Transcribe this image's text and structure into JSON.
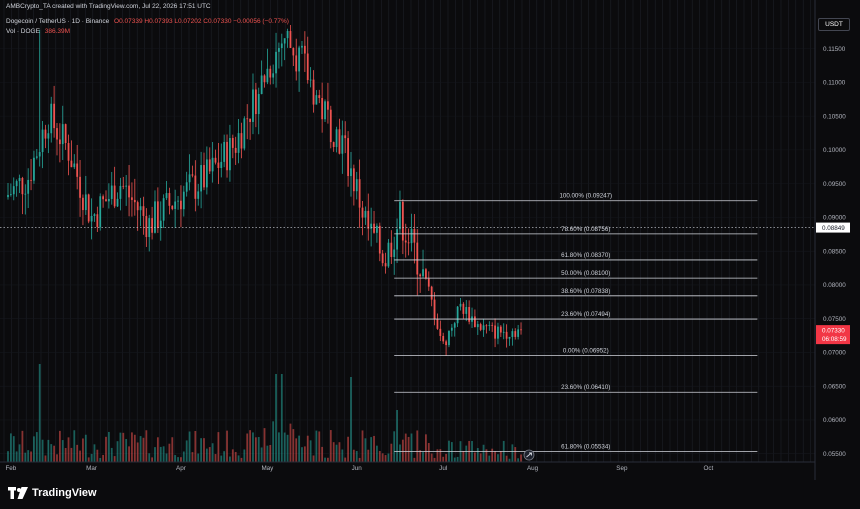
{
  "header": {
    "credit": "AMBCrypto_TA created with TradingView.com, Jul 22, 2026 17:51 UTC",
    "symbol": "Dogecoin / TetherUS · 1D · Binance",
    "ohlc": "O0.07339 H0.07393 L0.07202 C0.07330 −0.00056 (−0.77%)",
    "vol_label": "Vol · DOGE",
    "vol_value": "386.39M"
  },
  "branding": {
    "logo_text": "TradingView",
    "unit_label": "USDT"
  },
  "colors": {
    "bull": "#26a69a",
    "bear": "#ef5350",
    "line": "#d1d4dc",
    "price_badge": "#f23645",
    "bg": "#0b0b0d",
    "grid": "#1d2028"
  },
  "chart_data": {
    "type": "candlestick",
    "xlabel": "",
    "ylabel": "",
    "ylim": [
      0.0548,
      0.1185
    ],
    "y_ticks": [
      "0.11500",
      "0.11000",
      "0.10500",
      "0.10000",
      "0.09500",
      "0.09000",
      "0.08500",
      "0.08000",
      "0.07500",
      "0.07000",
      "0.06500",
      "0.06000",
      "0.05500"
    ],
    "x_ticks": [
      "Feb",
      "Mar",
      "Apr",
      "May",
      "Jun",
      "Jul",
      "Aug",
      "Sep",
      "Oct"
    ],
    "x_tick_days": [
      1,
      29,
      60,
      90,
      121,
      151,
      182,
      213,
      243
    ],
    "dotted_level": {
      "value": 0.08849,
      "label": "0.08849"
    },
    "last_price": {
      "value": 0.0733,
      "label": "0.07330",
      "countdown": "06:08:59"
    },
    "fib_levels": [
      {
        "label": "100.00% (0.09247)",
        "value": 0.09247
      },
      {
        "label": "78.60% (0.08756)",
        "value": 0.08756
      },
      {
        "label": "61.80% (0.08370)",
        "value": 0.0837
      },
      {
        "label": "50.00% (0.08100)",
        "value": 0.081
      },
      {
        "label": "38.60% (0.07838)",
        "value": 0.07838
      },
      {
        "label": "23.60% (0.07494)",
        "value": 0.07494
      },
      {
        "label": "0.00% (0.06952)",
        "value": 0.06952
      },
      {
        "label": "23.60% (0.06410)",
        "value": 0.0641
      },
      {
        "label": "61.80% (0.05534)",
        "value": 0.05534
      }
    ],
    "fib_start_day": 134,
    "fib_end_day": 260,
    "anchors": [
      [
        0,
        0.093
      ],
      [
        8,
        0.096
      ],
      [
        15,
        0.105
      ],
      [
        22,
        0.1
      ],
      [
        30,
        0.09
      ],
      [
        40,
        0.095
      ],
      [
        50,
        0.089
      ],
      [
        60,
        0.093
      ],
      [
        70,
        0.096
      ],
      [
        80,
        0.101
      ],
      [
        90,
        0.111
      ],
      [
        97,
        0.117
      ],
      [
        103,
        0.113
      ],
      [
        110,
        0.106
      ],
      [
        117,
        0.101
      ],
      [
        122,
        0.094
      ],
      [
        126,
        0.088
      ],
      [
        132,
        0.084
      ],
      [
        137,
        0.09
      ],
      [
        142,
        0.085
      ],
      [
        147,
        0.079
      ],
      [
        152,
        0.071
      ],
      [
        158,
        0.077
      ],
      [
        164,
        0.074
      ],
      [
        170,
        0.073
      ],
      [
        178,
        0.0733
      ]
    ],
    "last_day": 178,
    "wick_extremes": {
      "high": [
        [
          11,
          0.1178
        ],
        [
          96,
          0.1165
        ]
      ],
      "low": [
        [
          152,
          0.0695
        ]
      ]
    }
  }
}
